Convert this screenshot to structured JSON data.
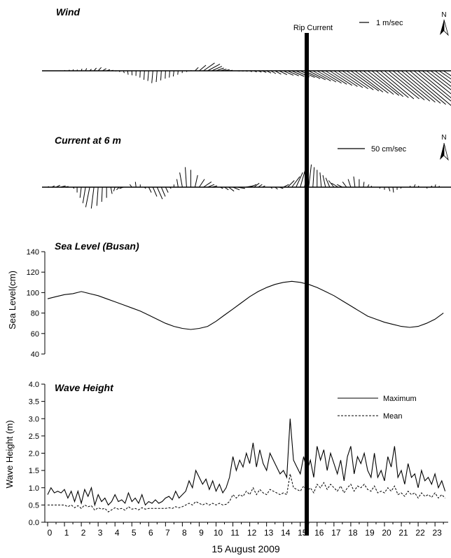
{
  "chart_data": [
    {
      "type": "stick-vector",
      "title": "Wind",
      "scale_label": "1 m/sec",
      "north_label": "N",
      "scale_value": 1,
      "scale_units": "m/sec",
      "t_start": 0,
      "t_end": 23.5,
      "interval_hours": 0.25,
      "samples": 95,
      "description_free_data": {
        "u": [
          0.02,
          0.01,
          0.03,
          -0.02,
          0.05,
          0.08,
          0.04,
          0.02,
          0.06,
          0.1,
          0.15,
          0.22,
          0.28,
          0.35,
          0.3,
          0.22,
          0.12,
          0.06,
          0.08,
          0.05,
          0.02,
          -0.01,
          -0.03,
          -0.05,
          -0.08,
          -0.1,
          -0.08,
          -0.05,
          -0.03,
          -0.04,
          -0.06,
          -0.04,
          -0.02,
          0.02,
          0.05,
          0.3,
          0.6,
          1.0,
          1.1,
          0.9,
          0.7,
          0.55,
          0.45,
          0.35,
          0.3,
          0.25,
          0.2,
          0.18,
          0.2,
          0.25,
          0.3,
          0.35,
          0.4,
          0.45,
          0.55,
          0.7,
          0.9,
          1.0,
          1.1,
          1.2,
          1.3,
          1.4,
          1.5,
          1.6,
          1.7,
          1.8,
          1.9,
          2.0,
          2.1,
          2.2,
          2.3,
          2.4,
          2.5,
          2.5,
          2.6,
          2.7,
          2.8,
          2.8,
          2.9,
          3.0,
          3.1,
          3.2,
          3.3,
          3.4,
          3.5,
          3.6,
          3.7,
          3.8,
          3.9,
          4.0,
          4.0,
          3.9,
          3.8,
          3.6,
          3.4
        ],
        "v": [
          0.02,
          0.01,
          0.0,
          0.03,
          0.05,
          0.08,
          0.12,
          0.1,
          0.18,
          0.22,
          0.15,
          0.25,
          0.3,
          0.2,
          0.1,
          0.05,
          -0.02,
          -0.1,
          -0.2,
          -0.35,
          -0.4,
          -0.45,
          -0.6,
          -0.8,
          -0.9,
          -1.1,
          -1.0,
          -0.85,
          -0.7,
          -0.6,
          -0.5,
          -0.35,
          -0.2,
          -0.1,
          0.05,
          0.3,
          0.5,
          0.7,
          0.6,
          0.4,
          0.25,
          0.15,
          0.1,
          0.05,
          0.0,
          -0.02,
          -0.03,
          -0.05,
          -0.08,
          -0.1,
          -0.12,
          -0.15,
          -0.2,
          -0.25,
          -0.3,
          -0.35,
          -0.4,
          -0.45,
          -0.5,
          -0.55,
          -0.6,
          -0.7,
          -0.8,
          -0.9,
          -1.0,
          -1.1,
          -1.2,
          -1.3,
          -1.4,
          -1.5,
          -1.6,
          -1.7,
          -1.8,
          -1.9,
          -2.0,
          -2.1,
          -2.2,
          -2.3,
          -2.4,
          -2.5,
          -2.5,
          -2.6,
          -2.7,
          -2.8,
          -2.9,
          -3.0,
          -3.1,
          -3.1,
          -3.2,
          -3.2,
          -3.1,
          -3.0,
          -2.8,
          -2.5,
          -2.2
        ]
      }
    },
    {
      "type": "stick-vector",
      "title": "Current at 6 m",
      "scale_label": "50 cm/sec",
      "north_label": "N",
      "scale_value": 50,
      "scale_units": "cm/sec",
      "t_start": 0,
      "t_end": 23.5,
      "interval_hours": 0.25,
      "samples": 95,
      "description_free_data": {
        "u": [
          2,
          4,
          6,
          8,
          6,
          4,
          2,
          0,
          -2,
          -4,
          -6,
          -4,
          -2,
          -1,
          0,
          2,
          -2,
          -4,
          -6,
          -5,
          -3,
          -1,
          0,
          2,
          4,
          6,
          8,
          6,
          4,
          2,
          0,
          -2,
          -4,
          -2,
          0,
          4,
          8,
          12,
          10,
          8,
          6,
          4,
          6,
          8,
          10,
          12,
          14,
          12,
          10,
          8,
          6,
          4,
          3,
          2,
          4,
          6,
          8,
          10,
          12,
          10,
          8,
          6,
          4,
          2,
          0,
          -2,
          -4,
          -6,
          -8,
          -10,
          -8,
          -6,
          -4,
          -2,
          0,
          1,
          2,
          -1,
          -2,
          -1,
          0,
          2,
          1,
          0,
          -1,
          0,
          1,
          2,
          1,
          0,
          1,
          2,
          1,
          0,
          1
        ],
        "v": [
          1,
          2,
          3,
          2,
          1,
          0,
          -2,
          -8,
          -16,
          -24,
          -30,
          -32,
          -28,
          -22,
          -16,
          -10,
          -6,
          -4,
          -2,
          0,
          4,
          8,
          4,
          -2,
          -8,
          -14,
          -18,
          -14,
          -8,
          -2,
          4,
          12,
          22,
          30,
          26,
          18,
          12,
          8,
          4,
          2,
          0,
          -2,
          -4,
          -6,
          -4,
          -2,
          0,
          2,
          4,
          6,
          4,
          2,
          0,
          -2,
          -3,
          -2,
          4,
          10,
          16,
          22,
          28,
          32,
          34,
          30,
          26,
          22,
          18,
          14,
          10,
          6,
          4,
          8,
          12,
          16,
          12,
          8,
          4,
          2,
          0,
          -2,
          -4,
          -6,
          -8,
          -4,
          -2,
          0,
          2,
          4,
          2,
          0,
          -2,
          2,
          4,
          2,
          0
        ]
      }
    },
    {
      "type": "line",
      "title": "Sea Level (Busan)",
      "ylabel": "Sea Level(cm)",
      "ylim": [
        40,
        140
      ],
      "yticks": [
        40,
        60,
        80,
        100,
        120,
        140
      ],
      "x_hours": [
        0,
        0.5,
        1,
        1.5,
        2,
        2.5,
        3,
        3.5,
        4,
        4.5,
        5,
        5.5,
        6,
        6.5,
        7,
        7.5,
        8,
        8.5,
        9,
        9.5,
        10,
        10.5,
        11,
        11.5,
        12,
        12.5,
        13,
        13.5,
        14,
        14.5,
        15,
        15.5,
        16,
        16.5,
        17,
        17.5,
        18,
        18.5,
        19,
        19.5,
        20,
        20.5,
        21,
        21.5,
        22,
        22.5,
        23,
        23.5
      ],
      "series": [
        {
          "values": [
            94,
            96,
            98,
            99,
            101,
            99,
            97,
            94,
            91,
            88,
            85,
            82,
            78,
            74,
            70,
            67,
            65,
            64,
            65,
            67,
            72,
            78,
            84,
            90,
            96,
            101,
            105,
            108,
            110,
            111,
            110,
            108,
            105,
            101,
            97,
            92,
            87,
            82,
            77,
            74,
            71,
            69,
            67,
            66,
            67,
            70,
            74,
            80
          ]
        }
      ]
    },
    {
      "type": "line",
      "title": "Wave Height",
      "ylabel": "Wave Height (m)",
      "xlabel": "15 August 2009",
      "ylim": [
        0.0,
        4.0
      ],
      "yticks": [
        "0.0",
        "0.5",
        "1.0",
        "1.5",
        "2.0",
        "2.5",
        "3.0",
        "3.5",
        "4.0"
      ],
      "xticks": [
        "0",
        "1",
        "2",
        "3",
        "4",
        "5",
        "6",
        "7",
        "8",
        "9",
        "10",
        "11",
        "12",
        "13",
        "14",
        "15",
        "16",
        "17",
        "18",
        "19",
        "20",
        "21",
        "22",
        "23"
      ],
      "legend": "top-right",
      "x_step_hours": 0.2,
      "series": [
        {
          "name": "Maximum",
          "style": "solid",
          "values": [
            0.8,
            1.0,
            0.85,
            0.9,
            0.85,
            0.95,
            0.7,
            0.9,
            0.6,
            0.9,
            0.55,
            0.95,
            0.75,
            1.0,
            0.5,
            0.8,
            0.6,
            0.7,
            0.5,
            0.6,
            0.8,
            0.6,
            0.65,
            0.55,
            0.85,
            0.6,
            0.7,
            0.55,
            0.8,
            0.5,
            0.6,
            0.55,
            0.65,
            0.55,
            0.6,
            0.7,
            0.75,
            0.65,
            0.9,
            0.7,
            0.8,
            0.9,
            1.2,
            1.0,
            1.5,
            1.3,
            1.1,
            1.25,
            0.95,
            1.2,
            0.9,
            1.1,
            0.85,
            1.0,
            1.3,
            1.9,
            1.5,
            1.8,
            1.6,
            2.0,
            1.7,
            2.3,
            1.6,
            2.1,
            1.7,
            1.5,
            2.0,
            1.8,
            1.6,
            1.4,
            1.5,
            1.3,
            3.0,
            1.8,
            1.6,
            1.4,
            1.9,
            1.5,
            1.8,
            1.3,
            2.2,
            1.8,
            2.1,
            1.5,
            2.0,
            1.7,
            1.4,
            1.8,
            1.2,
            1.9,
            2.2,
            1.4,
            1.9,
            1.7,
            2.0,
            1.5,
            1.3,
            2.0,
            1.3,
            1.5,
            1.2,
            1.9,
            1.6,
            2.2,
            1.3,
            1.5,
            1.1,
            1.7,
            1.3,
            1.4,
            1.0,
            1.5,
            1.2,
            1.3,
            1.1,
            1.4,
            1.0,
            1.2,
            0.9,
            1.3,
            1.0,
            1.4,
            1.2,
            1.6,
            1.4,
            1.5,
            1.3,
            1.6,
            1.5,
            1.7,
            1.3,
            1.6,
            1.4,
            1.7,
            1.3,
            1.8,
            1.5,
            1.6,
            1.4,
            1.9,
            1.6,
            1.3,
            1.35
          ]
        },
        {
          "name": "Mean",
          "style": "dashed",
          "values": [
            0.5,
            0.5,
            0.5,
            0.5,
            0.5,
            0.5,
            0.45,
            0.5,
            0.42,
            0.48,
            0.4,
            0.5,
            0.45,
            0.48,
            0.35,
            0.42,
            0.38,
            0.4,
            0.3,
            0.36,
            0.42,
            0.38,
            0.4,
            0.35,
            0.45,
            0.38,
            0.4,
            0.36,
            0.42,
            0.38,
            0.4,
            0.4,
            0.4,
            0.4,
            0.4,
            0.4,
            0.42,
            0.4,
            0.45,
            0.42,
            0.45,
            0.5,
            0.55,
            0.5,
            0.6,
            0.55,
            0.5,
            0.55,
            0.5,
            0.55,
            0.5,
            0.55,
            0.5,
            0.52,
            0.6,
            0.8,
            0.7,
            0.8,
            0.75,
            0.9,
            0.8,
            1.0,
            0.8,
            0.95,
            0.85,
            0.8,
            0.95,
            0.9,
            0.85,
            0.8,
            0.85,
            0.8,
            1.4,
            1.0,
            0.95,
            0.9,
            1.05,
            0.9,
            1.0,
            0.85,
            1.1,
            1.0,
            1.15,
            0.95,
            1.1,
            1.0,
            0.9,
            1.05,
            0.85,
            1.0,
            1.1,
            0.9,
            1.05,
            1.0,
            1.1,
            0.95,
            0.9,
            1.05,
            0.85,
            0.9,
            0.85,
            1.0,
            0.9,
            1.05,
            0.8,
            0.85,
            0.75,
            0.9,
            0.8,
            0.85,
            0.7,
            0.85,
            0.75,
            0.8,
            0.72,
            0.85,
            0.7,
            0.8,
            0.7,
            0.85,
            0.75,
            0.9,
            0.8,
            0.95,
            0.85,
            0.9,
            0.85,
            0.95,
            0.9,
            0.95,
            0.85,
            0.95,
            0.9,
            1.0,
            0.85,
            1.0,
            0.9,
            0.95,
            0.88,
            1.05,
            0.95,
            0.85,
            0.8
          ]
        }
      ]
    }
  ],
  "annotation": {
    "label": "Rip Current",
    "x_hour": 15
  }
}
